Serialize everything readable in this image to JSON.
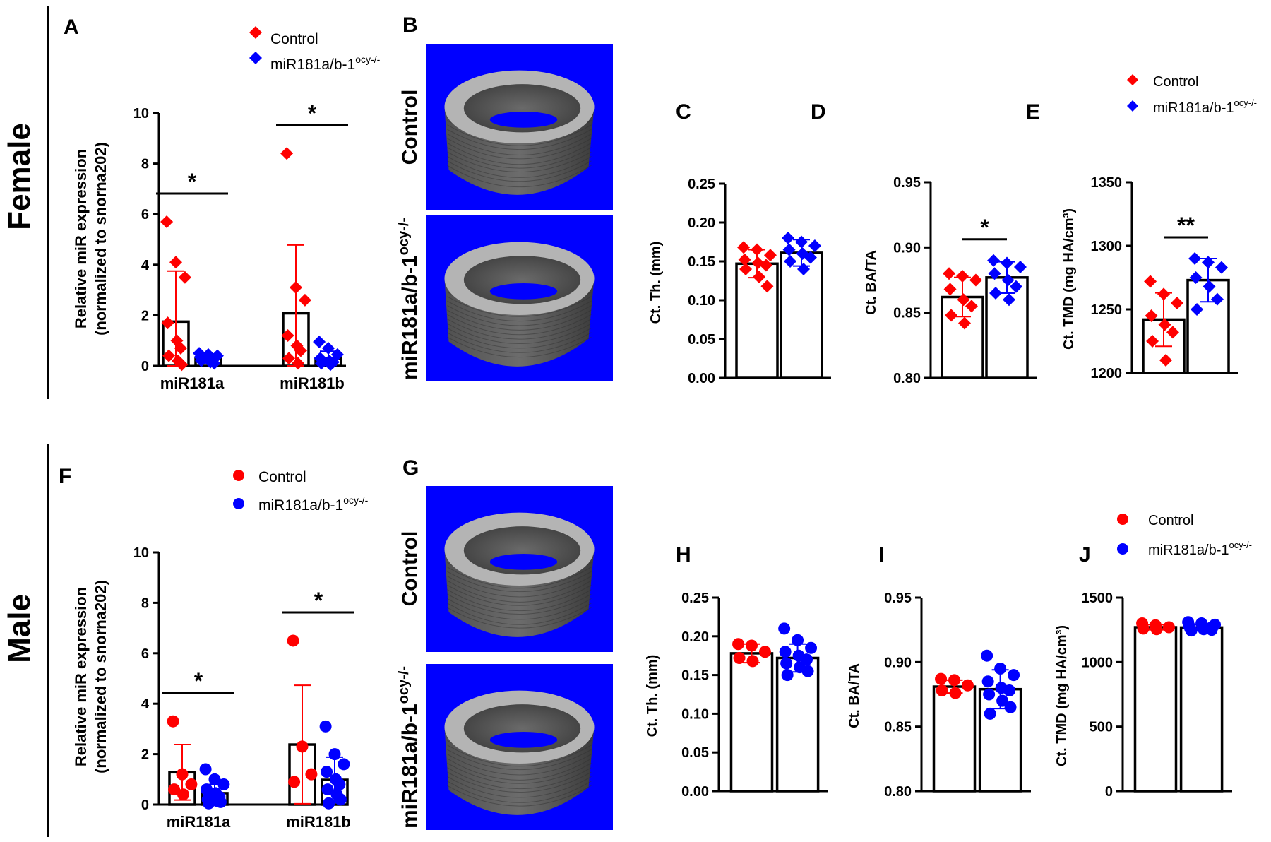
{
  "colors": {
    "control": "#ff0000",
    "knockout": "#0000ff",
    "background_ct": "#0000ff",
    "bone": "#a8a8a8"
  },
  "rows": {
    "female": "Female",
    "male": "Male"
  },
  "legend": {
    "control": "Control",
    "knockout_base": "miR181a/b-1",
    "knockout_sup": "ocy-/-"
  },
  "images": {
    "B": {
      "letter": "B",
      "control_label": "Control",
      "ko_label_base": "miR181a/b-1",
      "ko_label_sup": "ocy-/-"
    },
    "G": {
      "letter": "G",
      "control_label": "Control",
      "ko_label_base": "miR181a/b-1",
      "ko_label_sup": "ocy-/-"
    }
  },
  "chart_data": [
    {
      "panel": "A",
      "type": "bar",
      "marker": "diamond",
      "ylabel_line1": "Relative miR expression",
      "ylabel_line2": "(normalized to snorna202)",
      "ylim": [
        0,
        10
      ],
      "yticks": [
        "0",
        "2",
        "4",
        "6",
        "8",
        "10"
      ],
      "categories": [
        "miR181a",
        "miR181b"
      ],
      "groups": [
        {
          "category": "miR181a",
          "series": "Control",
          "mean": 1.75,
          "sd": 2.0,
          "points": [
            5.7,
            4.1,
            3.5,
            1.7,
            1.0,
            0.7,
            0.4,
            0.2,
            0.05
          ]
        },
        {
          "category": "miR181a",
          "series": "miR181a/b-1ocy-/-",
          "mean": 0.32,
          "sd": 0.15,
          "points": [
            0.5,
            0.45,
            0.4,
            0.35,
            0.3,
            0.25,
            0.2,
            0.15,
            0.1
          ]
        },
        {
          "category": "miR181b",
          "series": "Control",
          "mean": 2.08,
          "sd": 2.7,
          "points": [
            8.4,
            3.1,
            2.6,
            1.2,
            0.8,
            0.6,
            0.3,
            0.1
          ]
        },
        {
          "category": "miR181b",
          "series": "miR181a/b-1ocy-/-",
          "mean": 0.3,
          "sd": 0.28,
          "points": [
            0.95,
            0.7,
            0.45,
            0.3,
            0.2,
            0.15,
            0.1,
            0.05
          ]
        }
      ],
      "significance": [
        {
          "category": "miR181a",
          "label": "*"
        },
        {
          "category": "miR181b",
          "label": "*"
        }
      ]
    },
    {
      "panel": "C",
      "type": "bar",
      "marker": "diamond",
      "ylabel": "Ct. Th. (mm)",
      "ylim": [
        0,
        0.25
      ],
      "yticks": [
        "0.00",
        "0.05",
        "0.10",
        "0.15",
        "0.20",
        "0.25"
      ],
      "groups": [
        {
          "series": "Control",
          "mean": 0.147,
          "sd": 0.018,
          "points": [
            0.168,
            0.165,
            0.158,
            0.152,
            0.148,
            0.145,
            0.14,
            0.13,
            0.118
          ]
        },
        {
          "series": "miR181a/b-1ocy-/-",
          "mean": 0.161,
          "sd": 0.017,
          "points": [
            0.18,
            0.175,
            0.17,
            0.165,
            0.16,
            0.155,
            0.15,
            0.14
          ]
        }
      ],
      "significance": []
    },
    {
      "panel": "D",
      "type": "bar",
      "marker": "diamond",
      "ylabel": "Ct. BA/TA",
      "ylim": [
        0.8,
        0.95
      ],
      "yticks": [
        "0.80",
        "0.85",
        "0.90",
        "0.95"
      ],
      "groups": [
        {
          "series": "Control",
          "mean": 0.862,
          "sd": 0.015,
          "points": [
            0.88,
            0.878,
            0.875,
            0.868,
            0.86,
            0.855,
            0.848,
            0.842
          ]
        },
        {
          "series": "miR181a/b-1ocy-/-",
          "mean": 0.877,
          "sd": 0.012,
          "points": [
            0.89,
            0.888,
            0.885,
            0.88,
            0.875,
            0.87,
            0.865,
            0.86
          ]
        }
      ],
      "significance": [
        {
          "label": "*"
        }
      ]
    },
    {
      "panel": "E",
      "type": "bar",
      "marker": "diamond",
      "ylabel": "Ct. TMD (mg HA/cm³)",
      "ylim": [
        1200,
        1350
      ],
      "yticks": [
        "1200",
        "1250",
        "1300",
        "1350"
      ],
      "groups": [
        {
          "series": "Control",
          "mean": 1242,
          "sd": 21,
          "points": [
            1272,
            1262,
            1255,
            1245,
            1238,
            1232,
            1225,
            1210
          ]
        },
        {
          "series": "miR181a/b-1ocy-/-",
          "mean": 1273,
          "sd": 17,
          "points": [
            1290,
            1287,
            1283,
            1275,
            1268,
            1258,
            1250
          ]
        }
      ],
      "significance": [
        {
          "label": "**"
        }
      ]
    },
    {
      "panel": "F",
      "type": "bar",
      "marker": "circle",
      "ylabel_line1": "Relative miR expression",
      "ylabel_line2": "(normalized to snorna202)",
      "ylim": [
        0,
        10
      ],
      "yticks": [
        "0",
        "2",
        "4",
        "6",
        "8",
        "10"
      ],
      "categories": [
        "miR181a",
        "miR181b"
      ],
      "groups": [
        {
          "category": "miR181a",
          "series": "Control",
          "mean": 1.28,
          "sd": 1.1,
          "points": [
            3.3,
            1.2,
            0.8,
            0.6,
            0.4
          ]
        },
        {
          "category": "miR181a",
          "series": "miR181a/b-1ocy-/-",
          "mean": 0.45,
          "sd": 0.35,
          "points": [
            1.4,
            1.0,
            0.8,
            0.6,
            0.45,
            0.3,
            0.2,
            0.15,
            0.1,
            0.05
          ]
        },
        {
          "category": "miR181b",
          "series": "Control",
          "mean": 2.38,
          "sd": 2.35,
          "points": [
            6.5,
            2.3,
            1.2,
            0.9
          ]
        },
        {
          "category": "miR181b",
          "series": "miR181a/b-1ocy-/-",
          "mean": 0.98,
          "sd": 0.9,
          "points": [
            3.1,
            2.0,
            1.6,
            1.3,
            1.0,
            0.8,
            0.6,
            0.4,
            0.2,
            0.05
          ]
        }
      ],
      "significance": [
        {
          "category": "miR181a",
          "label": "*"
        },
        {
          "category": "miR181b",
          "label": "*"
        }
      ]
    },
    {
      "panel": "H",
      "type": "bar",
      "marker": "circle",
      "ylabel": "Ct. Th. (mm)",
      "ylim": [
        0,
        0.25
      ],
      "yticks": [
        "0.00",
        "0.05",
        "0.10",
        "0.15",
        "0.20",
        "0.25"
      ],
      "groups": [
        {
          "series": "Control",
          "mean": 0.178,
          "sd": 0.012,
          "points": [
            0.19,
            0.188,
            0.18,
            0.172,
            0.168
          ]
        },
        {
          "series": "miR181a/b-1ocy-/-",
          "mean": 0.172,
          "sd": 0.018,
          "points": [
            0.21,
            0.195,
            0.185,
            0.18,
            0.175,
            0.17,
            0.165,
            0.16,
            0.155,
            0.15
          ]
        }
      ],
      "significance": []
    },
    {
      "panel": "I",
      "type": "bar",
      "marker": "circle",
      "ylabel": "Ct. BA/TA",
      "ylim": [
        0.8,
        0.95
      ],
      "yticks": [
        "0.80",
        "0.85",
        "0.90",
        "0.95"
      ],
      "groups": [
        {
          "series": "Control",
          "mean": 0.881,
          "sd": 0.005,
          "points": [
            0.887,
            0.886,
            0.882,
            0.878,
            0.876
          ]
        },
        {
          "series": "miR181a/b-1ocy-/-",
          "mean": 0.879,
          "sd": 0.015,
          "points": [
            0.905,
            0.895,
            0.89,
            0.885,
            0.88,
            0.878,
            0.875,
            0.87,
            0.865,
            0.86
          ]
        }
      ],
      "significance": []
    },
    {
      "panel": "J",
      "type": "bar",
      "marker": "circle",
      "ylabel": "Ct. TMD (mg HA/cm³)",
      "ylim": [
        0,
        1500
      ],
      "yticks": [
        "0",
        "500",
        "1000",
        "1500"
      ],
      "groups": [
        {
          "series": "Control",
          "mean": 1270,
          "sd": 20,
          "points": [
            1300,
            1285,
            1270,
            1260,
            1255
          ]
        },
        {
          "series": "miR181a/b-1ocy-/-",
          "mean": 1268,
          "sd": 22,
          "points": [
            1310,
            1300,
            1290,
            1280,
            1270,
            1265,
            1260,
            1255,
            1250,
            1245
          ]
        }
      ],
      "significance": []
    }
  ]
}
